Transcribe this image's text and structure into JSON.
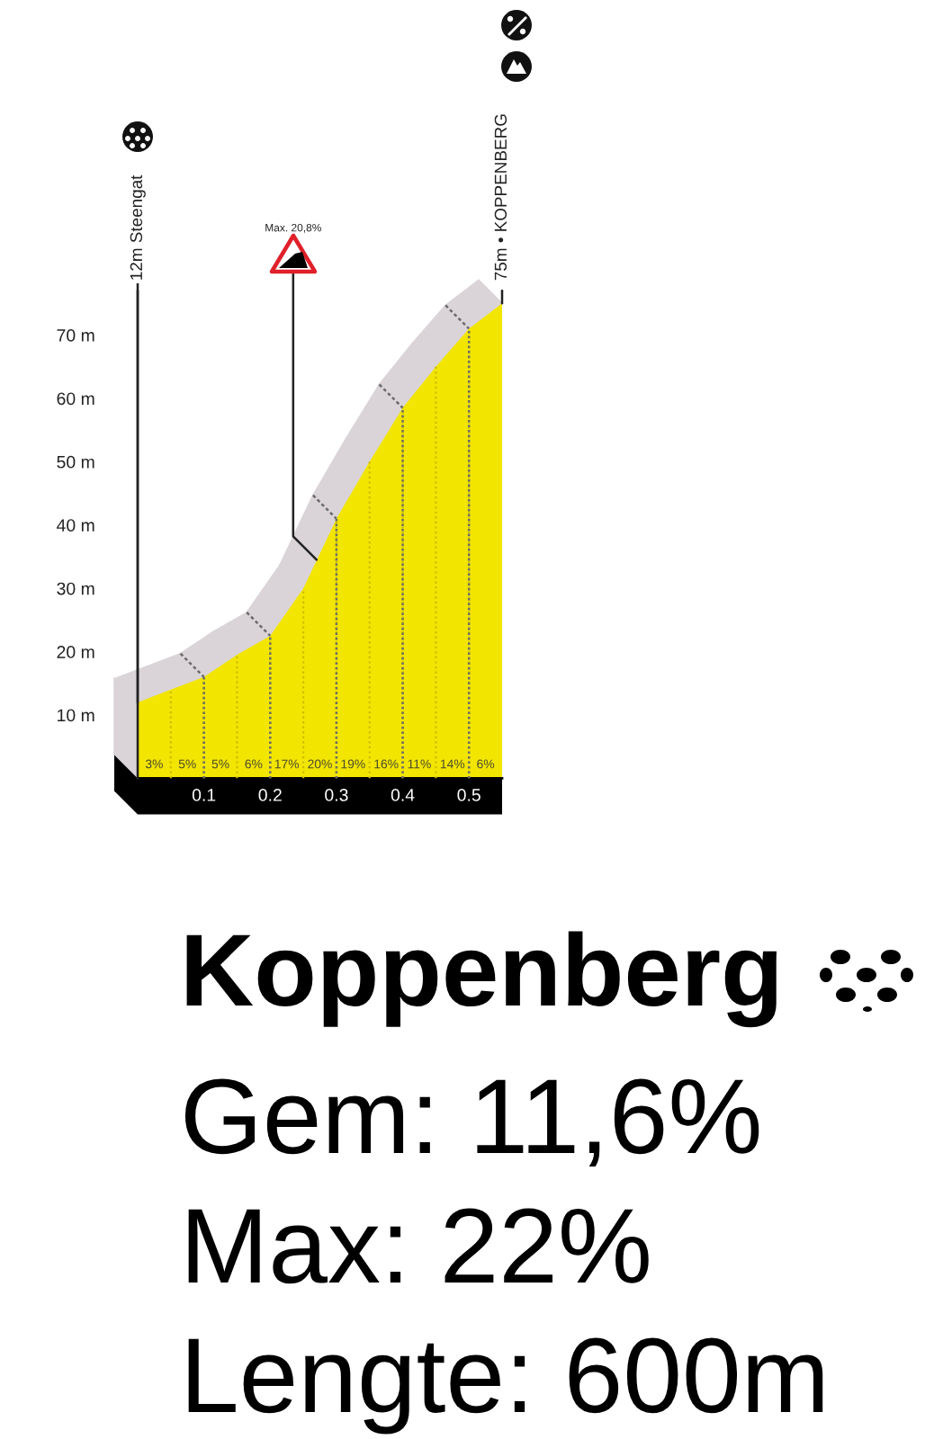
{
  "chart_data": {
    "type": "area",
    "title": "Koppenberg",
    "x": [
      0,
      0.05,
      0.1,
      0.15,
      0.2,
      0.25,
      0.3,
      0.35,
      0.4,
      0.45,
      0.5,
      0.55
    ],
    "values": [
      12,
      14,
      16,
      19.5,
      22.5,
      30,
      41,
      50,
      58.5,
      65,
      71,
      75
    ],
    "color": "#f2e500",
    "xlim": [
      0,
      0.55
    ],
    "ylim": [
      0,
      78
    ],
    "xticks": [
      0.1,
      0.2,
      0.3,
      0.4,
      0.5
    ],
    "yticks": [
      {
        "value": 10,
        "label": "10 m"
      },
      {
        "value": 20,
        "label": "20 m"
      },
      {
        "value": 30,
        "label": "30 m"
      },
      {
        "value": 40,
        "label": "40 m"
      },
      {
        "value": 50,
        "label": "50 m"
      },
      {
        "value": 60,
        "label": "60 m"
      },
      {
        "value": 70,
        "label": "70 m"
      }
    ],
    "grid": "x",
    "annotations": [
      {
        "text": "12m Steengat",
        "x": 0,
        "y": 12
      },
      {
        "text": "Max. 20,8%",
        "x": 0.27,
        "y": 34.5
      },
      {
        "text": "75m • KOPPENBERG",
        "x": 0.55,
        "y": 75
      },
      {
        "text": "3%",
        "x": 0.025,
        "y": 0
      },
      {
        "text": "5%",
        "x": 0.075,
        "y": 0
      },
      {
        "text": "5%",
        "x": 0.125,
        "y": 0
      },
      {
        "text": "6%",
        "x": 0.175,
        "y": 0
      },
      {
        "text": "17%",
        "x": 0.225,
        "y": 0
      },
      {
        "text": "20%",
        "x": 0.275,
        "y": 0
      },
      {
        "text": "19%",
        "x": 0.325,
        "y": 0
      },
      {
        "text": "16%",
        "x": 0.375,
        "y": 0
      },
      {
        "text": "11%",
        "x": 0.425,
        "y": 0
      },
      {
        "text": "14%",
        "x": 0.475,
        "y": 0
      },
      {
        "text": "6%",
        "x": 0.525,
        "y": 0
      },
      "Gem: 11,6%",
      "Max: 22%",
      "Lengte: 600m"
    ]
  }
}
